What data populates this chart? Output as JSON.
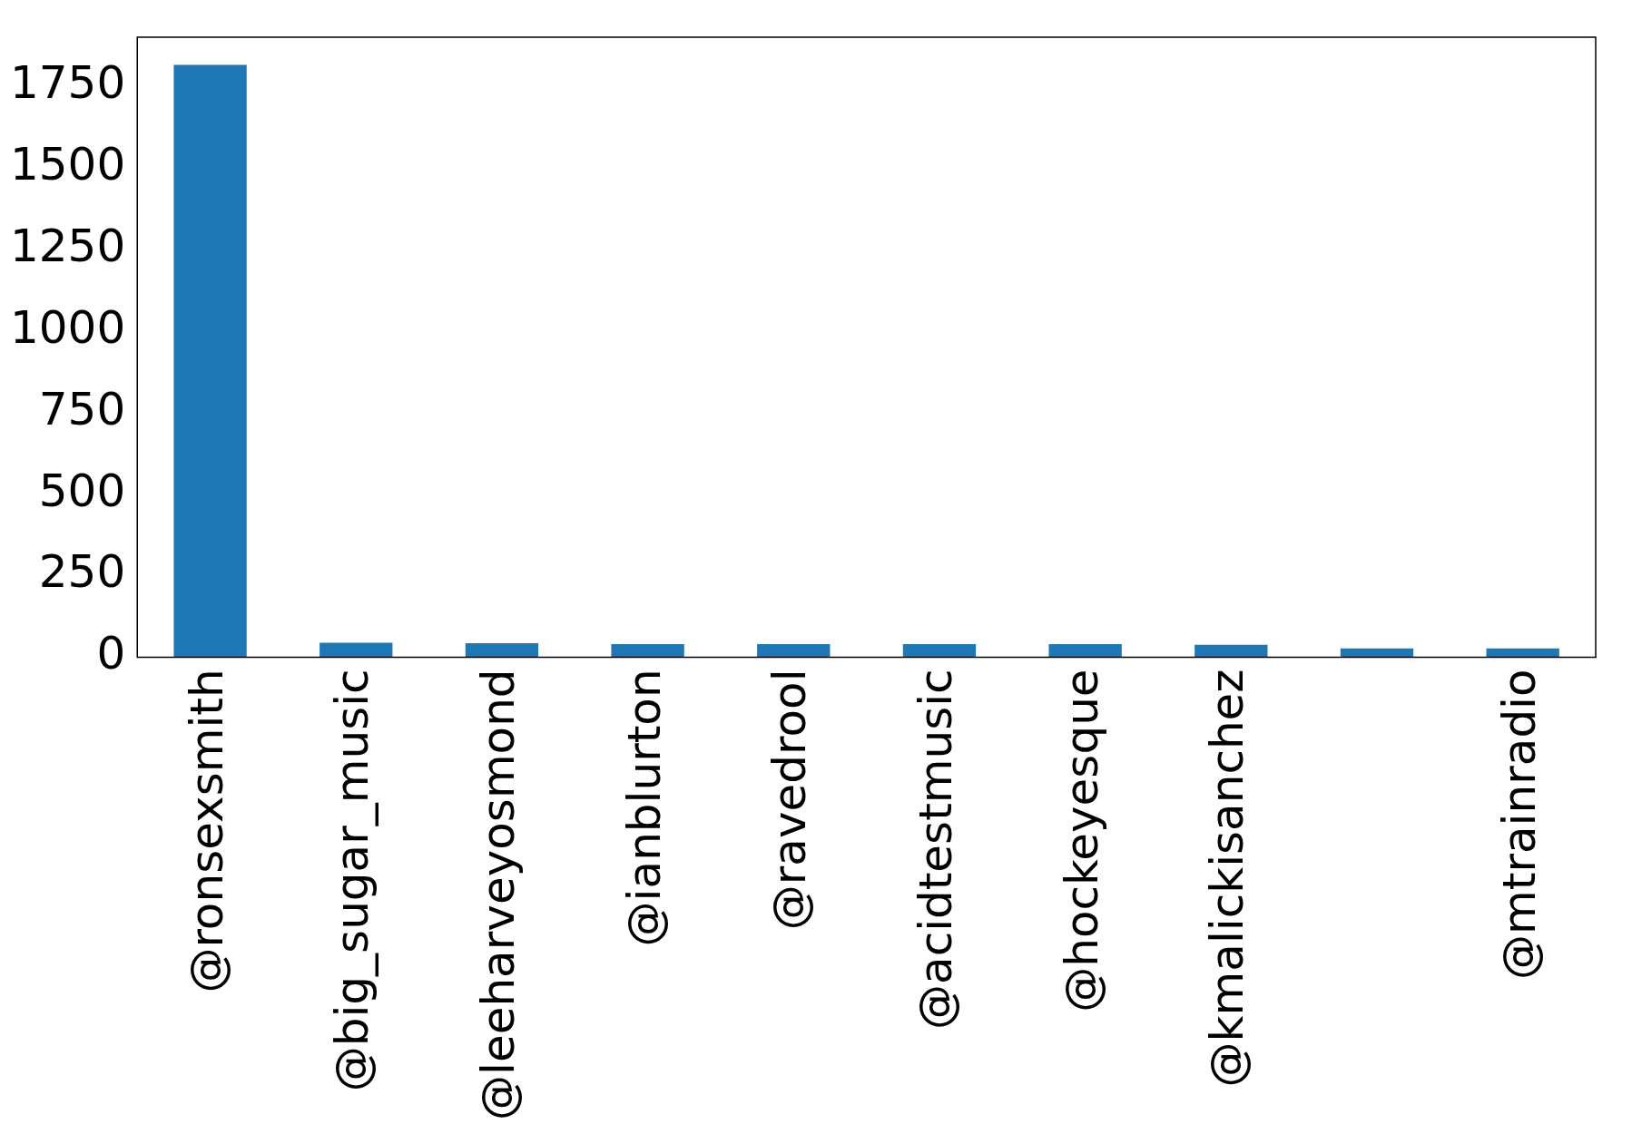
{
  "chart_data": {
    "type": "bar",
    "categories": [
      "@ronsexsmith",
      "@big_sugar_music",
      "@leeharveyosmond",
      "@ianblurton",
      "@ravedrool",
      "@acidtestmusic",
      "@hockeyesque",
      "@kmalickisanchez",
      null,
      "@mtrainradio"
    ],
    "values": [
      1815,
      44,
      43,
      40,
      40,
      40,
      40,
      38,
      27,
      27
    ],
    "color": "#1f77b4",
    "ylim": [
      0,
      1900
    ],
    "yticks": [
      0,
      250,
      500,
      750,
      1000,
      1250,
      1500,
      1750
    ],
    "grid": false
  }
}
